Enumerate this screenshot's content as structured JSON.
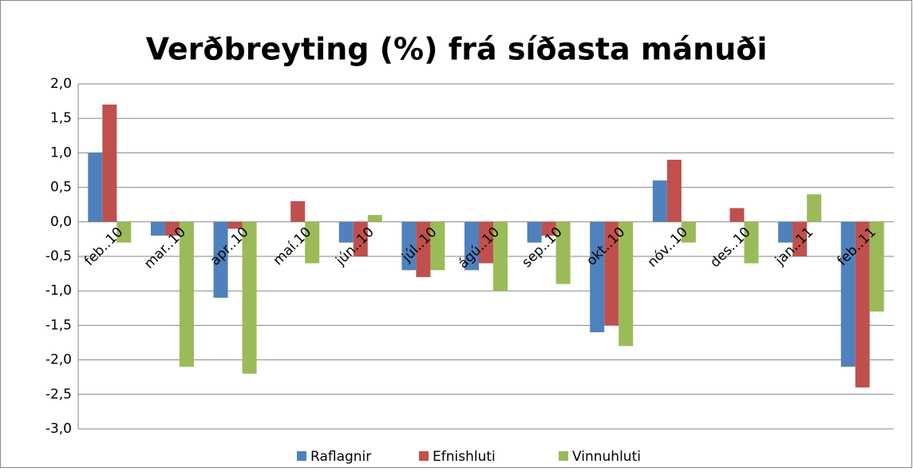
{
  "chart_data": {
    "type": "bar",
    "title": "Verðbreyting (%) frá síðasta mánuði",
    "categories": [
      "feb..10",
      "mar..10",
      "apr..10",
      "maí.10",
      "jún..10",
      "júl..10",
      "ágú..10",
      "sep..10",
      "okt..10",
      "nóv..10",
      "des..10",
      "jan..11",
      "feb..11"
    ],
    "series": [
      {
        "name": "Raflagnir",
        "color": "#4f81bd",
        "values": [
          1.0,
          -0.2,
          -1.1,
          0,
          -0.3,
          -0.7,
          -0.7,
          -0.3,
          -1.6,
          0.6,
          0,
          -0.3,
          -2.1
        ]
      },
      {
        "name": "Efnishluti",
        "color": "#c0504d",
        "values": [
          1.7,
          -0.2,
          -0.1,
          0.3,
          -0.5,
          -0.8,
          -0.6,
          -0.2,
          -1.5,
          0.9,
          0.2,
          -0.5,
          -2.4
        ]
      },
      {
        "name": "Vinnuhluti",
        "color": "#9bbb59",
        "values": [
          -0.3,
          -2.1,
          -2.2,
          -0.6,
          0.1,
          -0.7,
          -1.0,
          -0.9,
          -1.8,
          -0.3,
          -0.6,
          0.4,
          -1.3
        ]
      }
    ],
    "ylim": [
      -3,
      2
    ],
    "yticks": [
      {
        "value": -3,
        "label": "-3,0"
      },
      {
        "value": -2.5,
        "label": "-2,5"
      },
      {
        "value": -2,
        "label": "-2,0"
      },
      {
        "value": -1.5,
        "label": "-1,5"
      },
      {
        "value": -1,
        "label": "-1,0"
      },
      {
        "value": -0.5,
        "label": "-0,5"
      },
      {
        "value": 0,
        "label": "0,0"
      },
      {
        "value": 0.5,
        "label": "0,5"
      },
      {
        "value": 1,
        "label": "1,0"
      },
      {
        "value": 1.5,
        "label": "1,5"
      },
      {
        "value": 2,
        "label": "2,0"
      }
    ],
    "grid": true,
    "legend": "bottom"
  }
}
